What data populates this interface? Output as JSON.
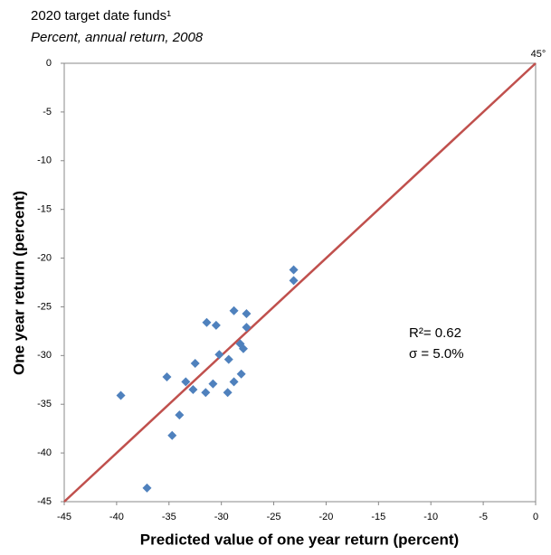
{
  "chart_data": {
    "type": "scatter",
    "title": "2020 target date funds¹",
    "subtitle": "Percent, annual return, 2008",
    "x_label": "Predicted value of one year return (percent)",
    "y_label": "One year return (percent)",
    "xlim": [
      -45,
      0
    ],
    "ylim": [
      -45,
      0
    ],
    "xticks": [
      -45,
      -40,
      -35,
      -30,
      -25,
      -20,
      -15,
      -10,
      -5,
      0
    ],
    "yticks": [
      0,
      -5,
      -10,
      -15,
      -20,
      -25,
      -30,
      -35,
      -40,
      -45
    ],
    "color": "#4f81bd",
    "x": [
      -23.1,
      -23.1,
      -28.8,
      -27.6,
      -31.4,
      -30.5,
      -27.6,
      -28.2,
      -27.9,
      -30.2,
      -29.3,
      -32.5,
      -35.2,
      -28.1,
      -33.4,
      -28.8,
      -30.8,
      -32.7,
      -31.5,
      -29.4,
      -39.6,
      -34.0,
      -34.7,
      -37.1
    ],
    "values": [
      -21.2,
      -22.3,
      -25.4,
      -25.7,
      -26.6,
      -26.9,
      -27.1,
      -28.8,
      -29.3,
      -29.9,
      -30.4,
      -30.8,
      -32.2,
      -31.9,
      -32.7,
      -32.7,
      -32.9,
      -33.5,
      -33.8,
      -33.8,
      -34.1,
      -36.1,
      -38.2,
      -43.6
    ],
    "reference_line": {
      "from": [
        -45,
        -45
      ],
      "to": [
        0,
        0
      ],
      "color": "#c0504d",
      "label": "45°"
    },
    "annotations": [
      "R²= 0.62",
      "σ = 5.0%"
    ]
  }
}
